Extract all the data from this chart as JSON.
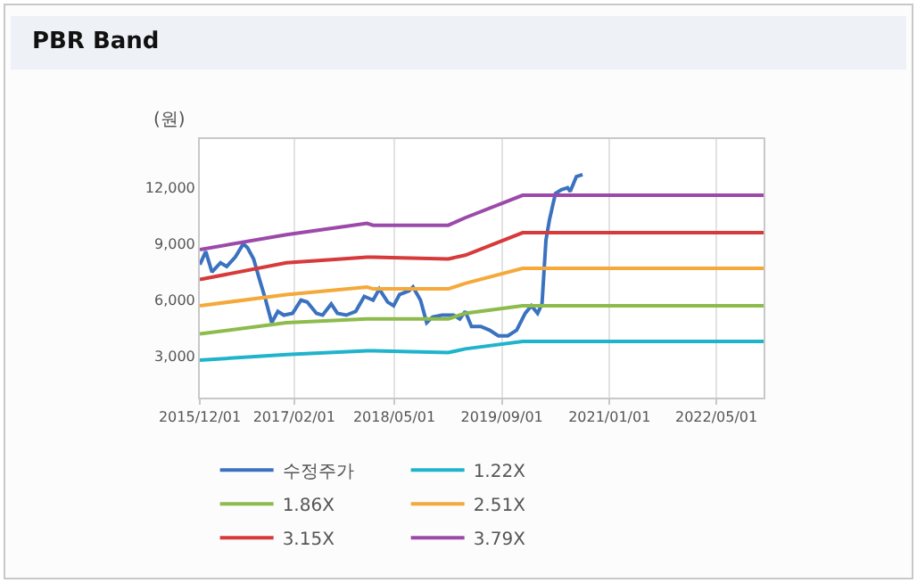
{
  "chart_data": {
    "type": "line",
    "title": "PBR Band",
    "ylabel": "(원)",
    "x": [
      "2015-12-01",
      "2016-12-28",
      "2017-12-28",
      "2018-01-25",
      "2019-01-01",
      "2019-03-19",
      "2019-12-04",
      "2022-12-01"
    ],
    "series": [
      {
        "name": "수정주가",
        "color": "#3b72c0",
        "x": [
          "2015-12-01",
          "2015-12-28",
          "2016-01-25",
          "2016-03-04",
          "2016-04-01",
          "2016-05-10",
          "2016-06-15",
          "2016-07-04",
          "2016-08-01",
          "2016-08-28",
          "2016-09-25",
          "2016-10-22",
          "2016-11-19",
          "2016-12-16",
          "2017-01-25",
          "2017-03-04",
          "2017-04-01",
          "2017-05-13",
          "2017-06-10",
          "2017-07-19",
          "2017-08-16",
          "2017-09-25",
          "2017-11-07",
          "2017-12-16",
          "2018-01-25",
          "2018-02-22",
          "2018-04-01",
          "2018-04-28",
          "2018-05-25",
          "2018-07-07",
          "2018-07-25",
          "2018-08-28",
          "2018-09-25",
          "2018-10-22",
          "2018-12-04",
          "2019-01-25",
          "2019-02-22",
          "2019-03-19",
          "2019-04-16",
          "2019-05-28",
          "2019-07-07",
          "2019-08-16",
          "2019-09-28",
          "2019-11-07",
          "2019-12-16",
          "2020-01-13",
          "2020-02-10",
          "2020-03-01",
          "2020-03-19",
          "2020-04-04",
          "2020-05-01",
          "2020-05-28",
          "2020-06-25",
          "2020-07-07",
          "2020-08-04",
          "2020-09-01"
        ],
        "values": [
          7900,
          8600,
          7500,
          8000,
          7800,
          8300,
          9000,
          8800,
          8200,
          7100,
          6000,
          4800,
          5400,
          5200,
          5300,
          6000,
          5900,
          5300,
          5200,
          5800,
          5300,
          5200,
          5400,
          6200,
          6000,
          6600,
          5900,
          5700,
          6300,
          6500,
          6700,
          6000,
          4800,
          5100,
          5200,
          5200,
          5000,
          5400,
          4600,
          4600,
          4400,
          4100,
          4100,
          4400,
          5300,
          5700,
          5300,
          5800,
          9200,
          10300,
          11700,
          11900,
          12000,
          11800,
          12600,
          12700
        ]
      },
      {
        "name": "1.22X",
        "color": "#1fb3cc",
        "values": [
          2800,
          3100,
          3300,
          3300,
          3200,
          3400,
          3800,
          3800
        ]
      },
      {
        "name": "1.86X",
        "color": "#8dbb4c",
        "values": [
          4200,
          4800,
          5000,
          5000,
          5000,
          5300,
          5700,
          5700
        ]
      },
      {
        "name": "2.51X",
        "color": "#f4a93a",
        "values": [
          5700,
          6300,
          6700,
          6600,
          6600,
          6900,
          7700,
          7700
        ]
      },
      {
        "name": "3.15X",
        "color": "#d63a3a",
        "values": [
          7100,
          8000,
          8300,
          8300,
          8200,
          8400,
          9600,
          9600
        ]
      },
      {
        "name": "3.79X",
        "color": "#9c4aaa",
        "values": [
          8700,
          9500,
          10100,
          10000,
          10000,
          10400,
          11600,
          11600
        ]
      }
    ],
    "xlim": [
      "2015-12-01",
      "2022-12-01"
    ],
    "xticks": [
      {
        "value": "2015-12-01",
        "label": "2015/12/01"
      },
      {
        "value": "2017-02-01",
        "label": "2017/02/01"
      },
      {
        "value": "2018-05-01",
        "label": "2018/05/01"
      },
      {
        "value": "2019-09-01",
        "label": "2019/09/01"
      },
      {
        "value": "2021-01-01",
        "label": "2021/01/01"
      },
      {
        "value": "2022-05-01",
        "label": "2022/05/01"
      }
    ],
    "ylim": [
      800,
      14600
    ],
    "yticks": [
      {
        "value": 3000,
        "label": "3,000"
      },
      {
        "value": 6000,
        "label": "6,000"
      },
      {
        "value": 9000,
        "label": "9,000"
      },
      {
        "value": 12000,
        "label": "12,000"
      }
    ],
    "grid": "x",
    "legend": "bottom",
    "marker": "none",
    "line_style": "solid"
  }
}
